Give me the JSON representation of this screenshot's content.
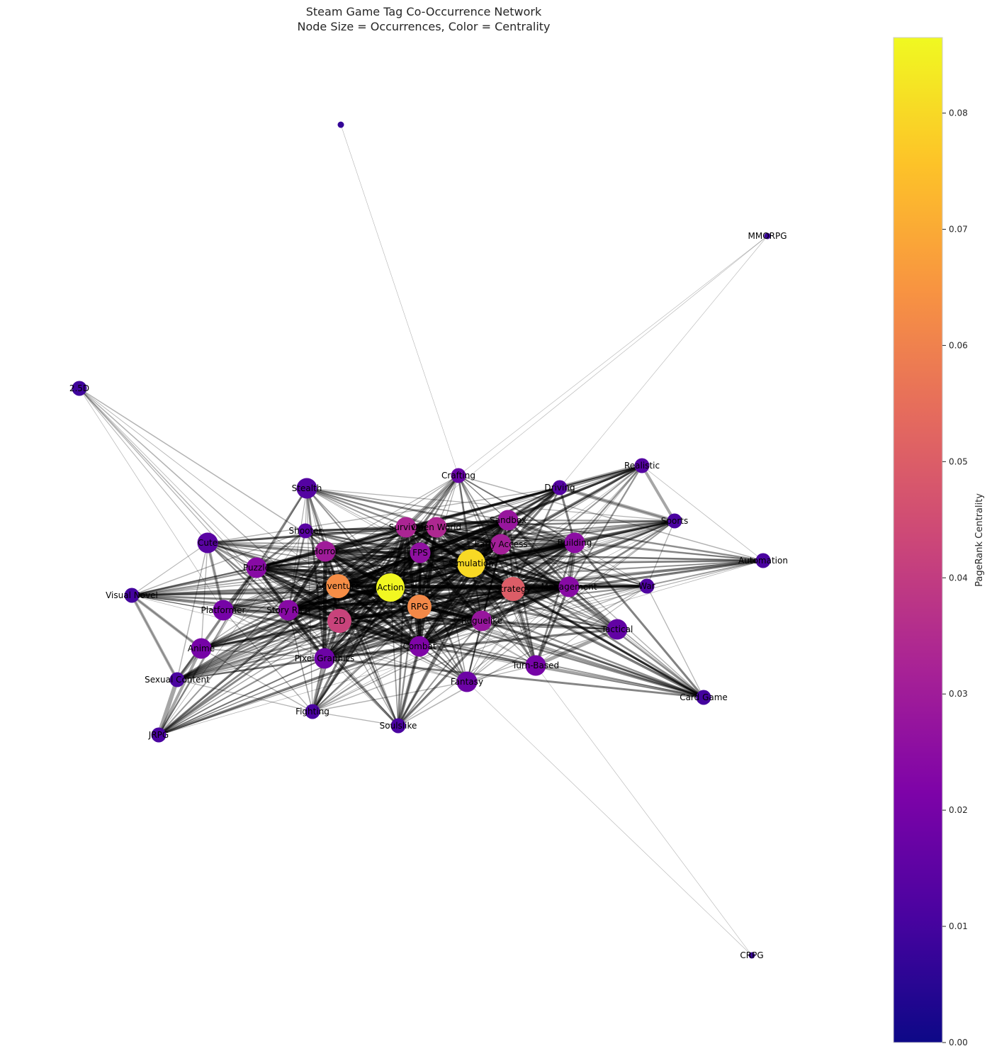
{
  "title": {
    "line1": "Steam Game Tag Co-Occurrence Network",
    "line2": "Node Size = Occurrences, Color = Centrality"
  },
  "colorbar": {
    "label": "PageRank Centrality",
    "colormap": "plasma",
    "min": 0.0,
    "max": 0.0865,
    "ticks": [
      "0.00",
      "0.01",
      "0.02",
      "0.03",
      "0.04",
      "0.05",
      "0.06",
      "0.07",
      "0.08"
    ]
  },
  "nodes": [
    {
      "id": "Action",
      "label": "Action",
      "occ": "huge",
      "pr": 0.086
    },
    {
      "id": "Simulation",
      "label": "Simulation",
      "occ": "huge",
      "pr": 0.08
    },
    {
      "id": "Adventure",
      "label": "Adventure",
      "occ": "large",
      "pr": 0.063
    },
    {
      "id": "RPG",
      "label": "RPG",
      "occ": "large",
      "pr": 0.062
    },
    {
      "id": "Strategy",
      "label": "Strategy",
      "occ": "large",
      "pr": 0.05
    },
    {
      "id": "2D",
      "label": "2D",
      "occ": "large",
      "pr": 0.042
    },
    {
      "id": "Survival",
      "label": "Survival",
      "occ": "medium",
      "pr": 0.033
    },
    {
      "id": "Open World",
      "label": "Open World",
      "occ": "medium",
      "pr": 0.034
    },
    {
      "id": "Early Access",
      "label": "Early Access",
      "occ": "medium",
      "pr": 0.031
    },
    {
      "id": "Horror",
      "label": "Horror",
      "occ": "medium",
      "pr": 0.03
    },
    {
      "id": "Sandbox",
      "label": "Sandbox",
      "occ": "medium",
      "pr": 0.028
    },
    {
      "id": "FPS",
      "label": "FPS",
      "occ": "medium",
      "pr": 0.026
    },
    {
      "id": "Roguelike",
      "label": "Roguelike",
      "occ": "medium",
      "pr": 0.028
    },
    {
      "id": "Building",
      "label": "Building",
      "occ": "medium",
      "pr": 0.025
    },
    {
      "id": "Management",
      "label": "Management",
      "occ": "medium",
      "pr": 0.024
    },
    {
      "id": "Puzzle",
      "label": "Puzzle",
      "occ": "medium",
      "pr": 0.024
    },
    {
      "id": "Story Rich",
      "label": "Story Rich",
      "occ": "medium",
      "pr": 0.024
    },
    {
      "id": "Combat",
      "label": "Combat",
      "occ": "medium",
      "pr": 0.022
    },
    {
      "id": "Pixel Graphics",
      "label": "Pixel Graphics",
      "occ": "medium",
      "pr": 0.018
    },
    {
      "id": "Turn-Based",
      "label": "Turn-Based",
      "occ": "medium",
      "pr": 0.02
    },
    {
      "id": "Platformer",
      "label": "Platformer",
      "occ": "medium",
      "pr": 0.02
    },
    {
      "id": "Anime",
      "label": "Anime",
      "occ": "medium",
      "pr": 0.02
    },
    {
      "id": "Fantasy",
      "label": "Fantasy",
      "occ": "medium",
      "pr": 0.018
    },
    {
      "id": "Tactical",
      "label": "Tactical",
      "occ": "medium",
      "pr": 0.016
    },
    {
      "id": "Crafting",
      "label": "Crafting",
      "occ": "small",
      "pr": 0.017
    },
    {
      "id": "Cute",
      "label": "Cute",
      "occ": "medium",
      "pr": 0.014
    },
    {
      "id": "Stealth",
      "label": "Stealth",
      "occ": "medium",
      "pr": 0.013
    },
    {
      "id": "Shooter",
      "label": "Shooter",
      "occ": "small",
      "pr": 0.014
    },
    {
      "id": "Driving",
      "label": "Driving",
      "occ": "small",
      "pr": 0.013
    },
    {
      "id": "Realistic",
      "label": "Realistic",
      "occ": "small",
      "pr": 0.013
    },
    {
      "id": "Sports",
      "label": "Sports",
      "occ": "small",
      "pr": 0.011
    },
    {
      "id": "War",
      "label": "War",
      "occ": "small",
      "pr": 0.012
    },
    {
      "id": "Automation",
      "label": "Automation",
      "occ": "small",
      "pr": 0.011
    },
    {
      "id": "Card Game",
      "label": "Card Game",
      "occ": "small",
      "pr": 0.01
    },
    {
      "id": "Sexual Content",
      "label": "Sexual Content",
      "occ": "small",
      "pr": 0.011
    },
    {
      "id": "Fighting",
      "label": "Fighting",
      "occ": "small",
      "pr": 0.011
    },
    {
      "id": "Soulslike",
      "label": "Soulslike",
      "occ": "small",
      "pr": 0.011
    },
    {
      "id": "JRPG",
      "label": "JRPG",
      "occ": "small",
      "pr": 0.011
    },
    {
      "id": "Visual Novel",
      "label": "Visual Novel",
      "occ": "small",
      "pr": 0.01
    },
    {
      "id": "2.5D",
      "label": "2.5D",
      "occ": "small",
      "pr": 0.009
    },
    {
      "id": "MMORPG",
      "label": "MMORPG",
      "occ": "tiny",
      "pr": 0.008
    },
    {
      "id": "CRPG",
      "label": "CRPG",
      "occ": "tiny",
      "pr": 0.008
    },
    {
      "id": "untitled",
      "label": "",
      "occ": "tiny",
      "pr": 0.007
    }
  ]
}
